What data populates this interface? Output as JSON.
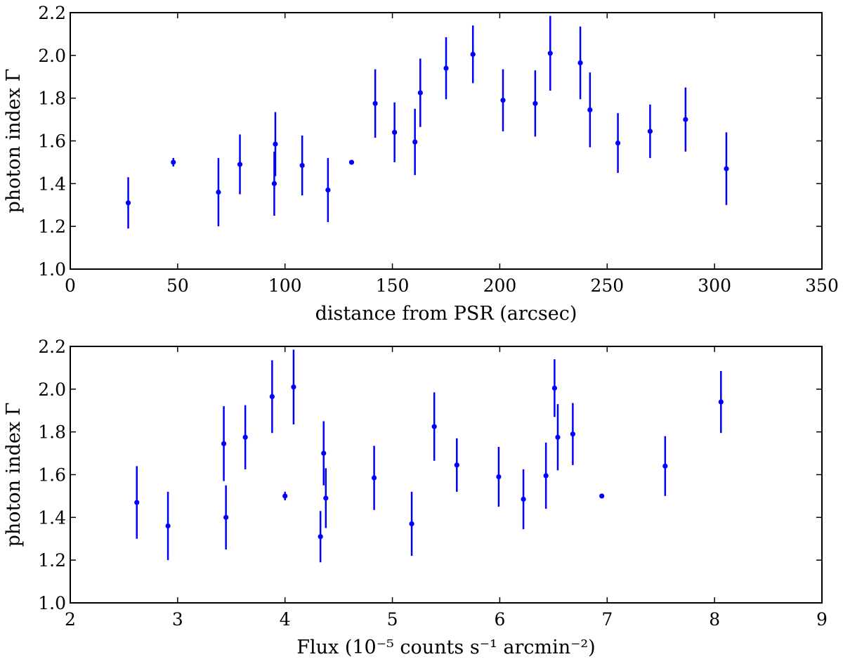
{
  "colors": {
    "marker": "#0000ff",
    "axes": "#000000",
    "background": "#ffffff"
  },
  "chart_data": [
    {
      "type": "scatter",
      "id": "top",
      "xlabel": "distance from PSR (arcsec)",
      "ylabel": "photon index Γ",
      "xlim": [
        0,
        350
      ],
      "ylim": [
        1.0,
        2.2
      ],
      "xticks": [
        0,
        50,
        100,
        150,
        200,
        250,
        300,
        350
      ],
      "xtick_labels": [
        "0",
        "50",
        "100",
        "150",
        "200",
        "250",
        "300",
        "350"
      ],
      "yticks": [
        1.0,
        1.2,
        1.4,
        1.6,
        1.8,
        2.0,
        2.2
      ],
      "ytick_labels": [
        "1.0",
        "1.2",
        "1.4",
        "1.6",
        "1.8",
        "2.0",
        "2.2"
      ],
      "series": [
        {
          "name": "photon index",
          "points": [
            {
              "x": 27,
              "y": 1.31,
              "err": 0.12
            },
            {
              "x": 48,
              "y": 1.5,
              "err": 0.02
            },
            {
              "x": 69,
              "y": 1.36,
              "err": 0.16
            },
            {
              "x": 79,
              "y": 1.49,
              "err": 0.14
            },
            {
              "x": 95,
              "y": 1.4,
              "err": 0.15
            },
            {
              "x": 95.5,
              "y": 1.585,
              "err": 0.15
            },
            {
              "x": 108,
              "y": 1.485,
              "err": 0.14
            },
            {
              "x": 120,
              "y": 1.37,
              "err": 0.15
            },
            {
              "x": 131,
              "y": 1.5,
              "err": 0.0
            },
            {
              "x": 142,
              "y": 1.775,
              "err": 0.16
            },
            {
              "x": 151,
              "y": 1.64,
              "err": 0.14
            },
            {
              "x": 160.5,
              "y": 1.595,
              "err": 0.155
            },
            {
              "x": 163,
              "y": 1.825,
              "err": 0.16
            },
            {
              "x": 175,
              "y": 1.94,
              "err": 0.145
            },
            {
              "x": 187.5,
              "y": 2.005,
              "err": 0.135
            },
            {
              "x": 201.5,
              "y": 1.79,
              "err": 0.145
            },
            {
              "x": 216.5,
              "y": 1.775,
              "err": 0.155
            },
            {
              "x": 223.5,
              "y": 2.01,
              "err": 0.175
            },
            {
              "x": 237.5,
              "y": 1.965,
              "err": 0.17
            },
            {
              "x": 242,
              "y": 1.745,
              "err": 0.175
            },
            {
              "x": 255,
              "y": 1.59,
              "err": 0.14
            },
            {
              "x": 270,
              "y": 1.645,
              "err": 0.125
            },
            {
              "x": 286.5,
              "y": 1.7,
              "err": 0.15
            },
            {
              "x": 305.5,
              "y": 1.47,
              "err": 0.17
            }
          ]
        }
      ]
    },
    {
      "type": "scatter",
      "id": "bottom",
      "xlabel": "Flux (10⁻⁵ counts s⁻¹ arcmin⁻²)",
      "ylabel": "photon index Γ",
      "xlim": [
        2,
        9
      ],
      "ylim": [
        1.0,
        2.2
      ],
      "xticks": [
        2,
        3,
        4,
        5,
        6,
        7,
        8,
        9
      ],
      "xtick_labels": [
        "2",
        "3",
        "4",
        "5",
        "6",
        "7",
        "8",
        "9"
      ],
      "yticks": [
        1.0,
        1.2,
        1.4,
        1.6,
        1.8,
        2.0,
        2.2
      ],
      "ytick_labels": [
        "1.0",
        "1.2",
        "1.4",
        "1.6",
        "1.8",
        "2.0",
        "2.2"
      ],
      "series": [
        {
          "name": "photon index",
          "points": [
            {
              "x": 2.62,
              "y": 1.47,
              "err": 0.17
            },
            {
              "x": 2.91,
              "y": 1.36,
              "err": 0.16
            },
            {
              "x": 3.43,
              "y": 1.745,
              "err": 0.175
            },
            {
              "x": 3.45,
              "y": 1.4,
              "err": 0.15
            },
            {
              "x": 3.63,
              "y": 1.775,
              "err": 0.15
            },
            {
              "x": 3.88,
              "y": 1.965,
              "err": 0.17
            },
            {
              "x": 4.0,
              "y": 1.5,
              "err": 0.02
            },
            {
              "x": 4.08,
              "y": 2.01,
              "err": 0.175
            },
            {
              "x": 4.33,
              "y": 1.31,
              "err": 0.12
            },
            {
              "x": 4.36,
              "y": 1.7,
              "err": 0.15
            },
            {
              "x": 4.38,
              "y": 1.49,
              "err": 0.14
            },
            {
              "x": 4.83,
              "y": 1.585,
              "err": 0.15
            },
            {
              "x": 5.18,
              "y": 1.37,
              "err": 0.15
            },
            {
              "x": 5.39,
              "y": 1.825,
              "err": 0.16
            },
            {
              "x": 5.6,
              "y": 1.645,
              "err": 0.125
            },
            {
              "x": 5.99,
              "y": 1.59,
              "err": 0.14
            },
            {
              "x": 6.22,
              "y": 1.485,
              "err": 0.14
            },
            {
              "x": 6.43,
              "y": 1.595,
              "err": 0.155
            },
            {
              "x": 6.51,
              "y": 2.005,
              "err": 0.135
            },
            {
              "x": 6.54,
              "y": 1.775,
              "err": 0.155
            },
            {
              "x": 6.68,
              "y": 1.79,
              "err": 0.145
            },
            {
              "x": 6.95,
              "y": 1.5,
              "err": 0.0
            },
            {
              "x": 7.54,
              "y": 1.64,
              "err": 0.14
            },
            {
              "x": 8.06,
              "y": 1.94,
              "err": 0.145
            }
          ]
        }
      ]
    }
  ]
}
